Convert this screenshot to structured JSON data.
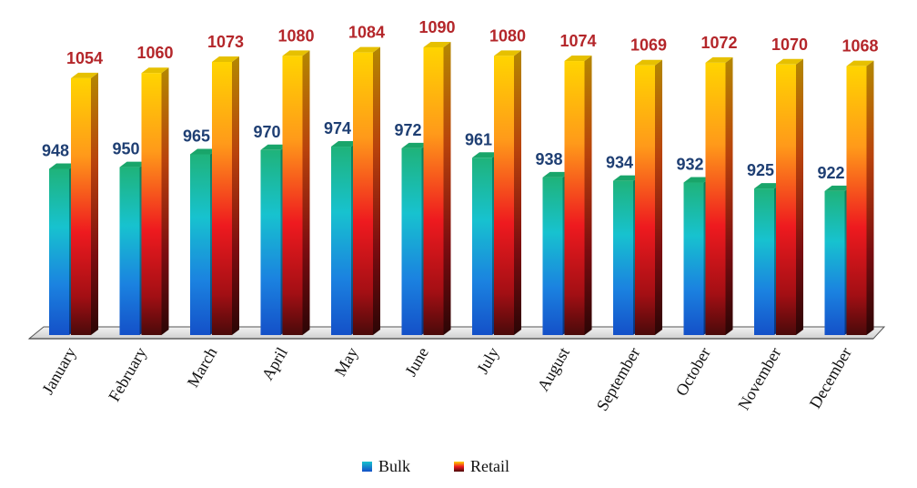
{
  "chart_data": {
    "type": "bar",
    "categories": [
      "January",
      "February",
      "March",
      "April",
      "May",
      "June",
      "July",
      "August",
      "September",
      "October",
      "November",
      "December"
    ],
    "series": [
      {
        "name": "Bulk",
        "values": [
          948,
          950,
          965,
          970,
          974,
          972,
          961,
          938,
          934,
          932,
          925,
          922
        ]
      },
      {
        "name": "Retail",
        "values": [
          1054,
          1060,
          1073,
          1080,
          1084,
          1090,
          1080,
          1074,
          1069,
          1072,
          1070,
          1068
        ]
      }
    ],
    "title": "",
    "xlabel": "",
    "ylabel": "",
    "legend_position": "bottom",
    "grid": false,
    "style": "3d-gradient-bars"
  }
}
